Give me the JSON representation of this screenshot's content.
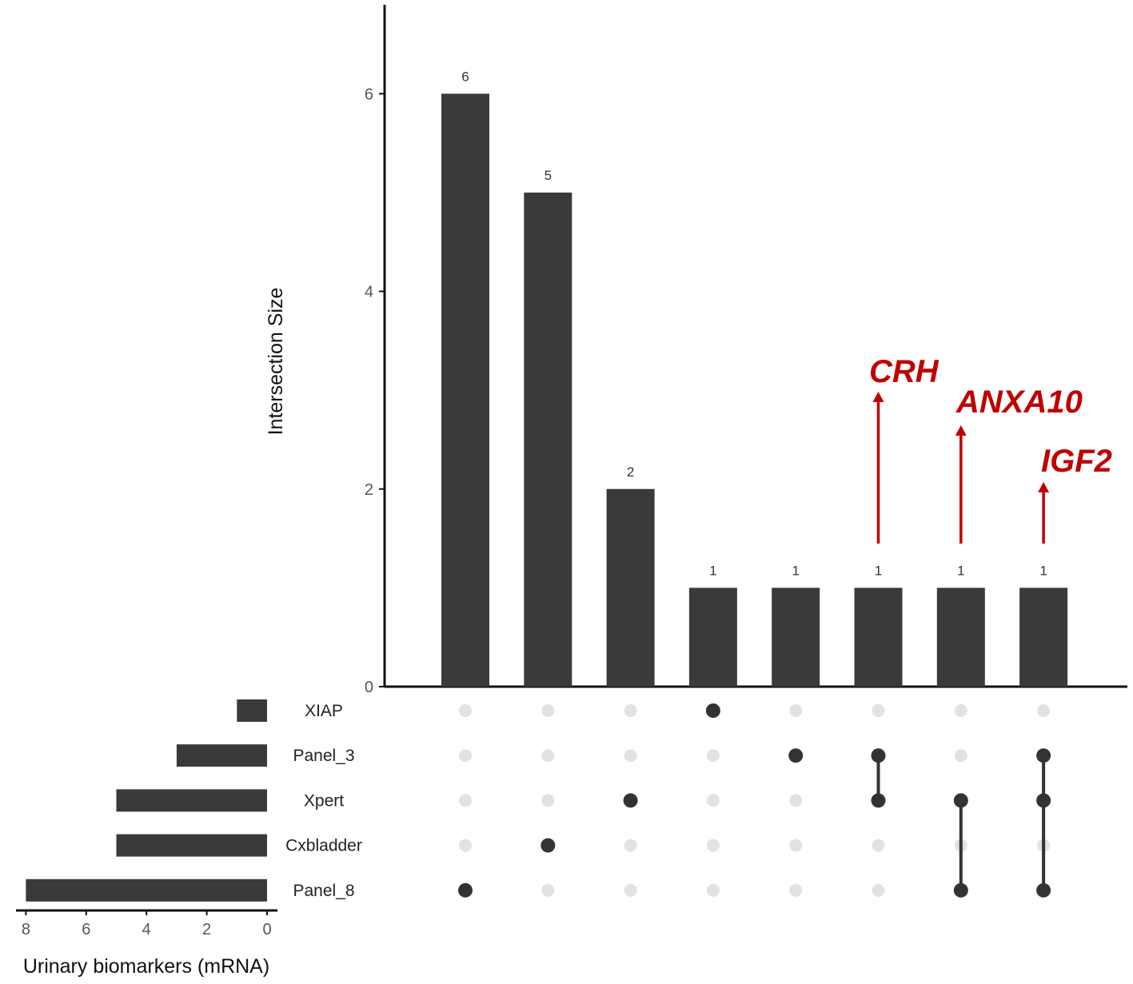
{
  "chart_data": {
    "type": "upset",
    "intersections": {
      "ylabel": "Intersection Size",
      "ylim": [
        0,
        6.9
      ],
      "yticks": [
        0,
        2,
        4,
        6
      ],
      "values": [
        6,
        5,
        2,
        1,
        1,
        1,
        1,
        1
      ],
      "memberships": [
        [
          "Panel_8"
        ],
        [
          "Cxbladder"
        ],
        [
          "Xpert"
        ],
        [
          "XIAP"
        ],
        [
          "Panel_3"
        ],
        [
          "Panel_3",
          "Xpert"
        ],
        [
          "Xpert",
          "Panel_8"
        ],
        [
          "Panel_3",
          "Xpert",
          "Panel_8"
        ]
      ]
    },
    "sets": {
      "names": [
        "XIAP",
        "Panel_3",
        "Xpert",
        "Cxbladder",
        "Panel_8"
      ],
      "sizes": [
        1,
        3,
        5,
        5,
        8
      ],
      "xlabel": "Urinary biomarkers (mRNA)",
      "xticks": [
        8,
        6,
        4,
        2,
        0
      ],
      "xlim": [
        0,
        8.3
      ]
    },
    "annotations": [
      {
        "text": "CRH",
        "intersection_index": 5
      },
      {
        "text": "ANXA10",
        "intersection_index": 6
      },
      {
        "text": "IGF2",
        "intersection_index": 7
      }
    ],
    "colors": {
      "bar": "#3a3a3a",
      "dot_active": "#333333",
      "dot_inactive": "#e2e2e2",
      "annotation": "#c00000",
      "axis": "#111111"
    }
  }
}
